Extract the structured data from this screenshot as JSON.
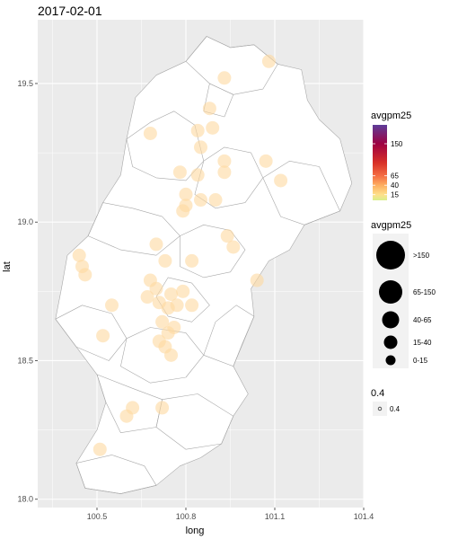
{
  "chart_data": {
    "type": "scatter",
    "title": "2017-02-01",
    "xlabel": "long",
    "ylabel": "lat",
    "xlim": [
      100.3,
      101.4
    ],
    "ylim": [
      17.97,
      19.73
    ],
    "x_ticks": [
      {
        "value": 100.5,
        "label": "100.5"
      },
      {
        "value": 100.8,
        "label": "100.8"
      },
      {
        "value": 101.1,
        "label": "101.1"
      },
      {
        "value": 101.4,
        "label": "101.4"
      }
    ],
    "y_ticks": [
      {
        "value": 18.0,
        "label": "18.0"
      },
      {
        "value": 18.5,
        "label": "18.5"
      },
      {
        "value": 19.0,
        "label": "19.0"
      },
      {
        "value": 19.5,
        "label": "19.5"
      }
    ],
    "grid": true,
    "legend_position": "right",
    "colors": {
      "panel": "#ebebeb",
      "grid": "#ffffff",
      "region_fill": "#ffffff",
      "region_stroke": "#a8a8a8",
      "point": "#fdd9a0",
      "legend_key": "#000000"
    },
    "color_legend": {
      "title": "avgpm25",
      "range": [
        0,
        200
      ],
      "stops": [
        {
          "value": 0,
          "color": "#d9ef8b"
        },
        {
          "value": 15,
          "color": "#fee08b"
        },
        {
          "value": 40,
          "color": "#fdae61"
        },
        {
          "value": 65,
          "color": "#f46d43"
        },
        {
          "value": 100,
          "color": "#d73027"
        },
        {
          "value": 150,
          "color": "#9e0142"
        },
        {
          "value": 200,
          "color": "#5e3c99"
        }
      ],
      "ticks": [
        {
          "value": 15,
          "label": "15"
        },
        {
          "value": 40,
          "label": "40"
        },
        {
          "value": 65,
          "label": "65"
        },
        {
          "value": 150,
          "label": "150"
        }
      ]
    },
    "size_legend": {
      "title": "avgpm25",
      "items": [
        {
          "label": ">150",
          "level": 5
        },
        {
          "label": "65-150",
          "level": 4
        },
        {
          "label": "40-65",
          "level": 3
        },
        {
          "label": "15-40",
          "level": 2
        },
        {
          "label": "0-15",
          "level": 1
        }
      ]
    },
    "alpha_legend": {
      "title": "0.4",
      "items": [
        {
          "label": "0.4"
        }
      ]
    },
    "points": [
      {
        "x": 101.08,
        "y": 19.58
      },
      {
        "x": 100.93,
        "y": 19.52
      },
      {
        "x": 100.88,
        "y": 19.41
      },
      {
        "x": 100.89,
        "y": 19.34
      },
      {
        "x": 100.84,
        "y": 19.33
      },
      {
        "x": 100.68,
        "y": 19.32
      },
      {
        "x": 100.85,
        "y": 19.27
      },
      {
        "x": 101.07,
        "y": 19.22
      },
      {
        "x": 100.93,
        "y": 19.22
      },
      {
        "x": 100.93,
        "y": 19.18
      },
      {
        "x": 100.78,
        "y": 19.18
      },
      {
        "x": 100.84,
        "y": 19.17
      },
      {
        "x": 101.12,
        "y": 19.15
      },
      {
        "x": 100.8,
        "y": 19.1
      },
      {
        "x": 100.85,
        "y": 19.08
      },
      {
        "x": 100.8,
        "y": 19.06
      },
      {
        "x": 100.9,
        "y": 19.08
      },
      {
        "x": 100.79,
        "y": 19.04
      },
      {
        "x": 100.94,
        "y": 18.95
      },
      {
        "x": 100.96,
        "y": 18.91
      },
      {
        "x": 100.7,
        "y": 18.92
      },
      {
        "x": 100.44,
        "y": 18.88
      },
      {
        "x": 100.45,
        "y": 18.84
      },
      {
        "x": 100.73,
        "y": 18.86
      },
      {
        "x": 100.82,
        "y": 18.86
      },
      {
        "x": 100.46,
        "y": 18.81
      },
      {
        "x": 101.04,
        "y": 18.79
      },
      {
        "x": 100.68,
        "y": 18.79
      },
      {
        "x": 100.7,
        "y": 18.76
      },
      {
        "x": 100.75,
        "y": 18.74
      },
      {
        "x": 100.79,
        "y": 18.75
      },
      {
        "x": 100.67,
        "y": 18.73
      },
      {
        "x": 100.71,
        "y": 18.71
      },
      {
        "x": 100.74,
        "y": 18.69
      },
      {
        "x": 100.77,
        "y": 18.7
      },
      {
        "x": 100.82,
        "y": 18.7
      },
      {
        "x": 100.55,
        "y": 18.7
      },
      {
        "x": 100.72,
        "y": 18.64
      },
      {
        "x": 100.76,
        "y": 18.62
      },
      {
        "x": 100.74,
        "y": 18.6
      },
      {
        "x": 100.52,
        "y": 18.59
      },
      {
        "x": 100.71,
        "y": 18.57
      },
      {
        "x": 100.73,
        "y": 18.55
      },
      {
        "x": 100.75,
        "y": 18.52
      },
      {
        "x": 100.62,
        "y": 18.33
      },
      {
        "x": 100.72,
        "y": 18.33
      },
      {
        "x": 100.6,
        "y": 18.3
      },
      {
        "x": 100.51,
        "y": 18.18
      }
    ],
    "regions": [
      [
        [
          100.87,
          19.67
        ],
        [
          100.95,
          19.63
        ],
        [
          101.03,
          19.64
        ],
        [
          101.11,
          19.57
        ],
        [
          101.19,
          19.55
        ],
        [
          101.21,
          19.44
        ],
        [
          101.25,
          19.37
        ],
        [
          101.32,
          19.3
        ],
        [
          101.36,
          19.14
        ],
        [
          101.32,
          19.04
        ],
        [
          101.2,
          18.99
        ],
        [
          101.15,
          18.9
        ],
        [
          101.08,
          18.86
        ],
        [
          101.02,
          18.76
        ],
        [
          101.03,
          18.66
        ],
        [
          100.99,
          18.56
        ],
        [
          100.96,
          18.48
        ],
        [
          101.01,
          18.38
        ],
        [
          100.96,
          18.3
        ],
        [
          100.92,
          18.2
        ],
        [
          100.85,
          18.15
        ],
        [
          100.78,
          18.12
        ],
        [
          100.7,
          18.05
        ],
        [
          100.58,
          18.02
        ],
        [
          100.46,
          18.04
        ],
        [
          100.43,
          18.13
        ],
        [
          100.5,
          18.25
        ],
        [
          100.53,
          18.35
        ],
        [
          100.5,
          18.45
        ],
        [
          100.43,
          18.55
        ],
        [
          100.36,
          18.65
        ],
        [
          100.38,
          18.76
        ],
        [
          100.4,
          18.88
        ],
        [
          100.47,
          18.95
        ],
        [
          100.52,
          19.07
        ],
        [
          100.58,
          19.17
        ],
        [
          100.6,
          19.3
        ],
        [
          100.63,
          19.45
        ],
        [
          100.7,
          19.53
        ],
        [
          100.8,
          19.58
        ]
      ],
      [
        [
          100.87,
          19.67
        ],
        [
          100.95,
          19.63
        ],
        [
          101.03,
          19.64
        ],
        [
          101.11,
          19.57
        ],
        [
          101.06,
          19.48
        ],
        [
          100.96,
          19.46
        ],
        [
          100.88,
          19.5
        ],
        [
          100.8,
          19.58
        ]
      ],
      [
        [
          100.6,
          19.3
        ],
        [
          100.68,
          19.36
        ],
        [
          100.76,
          19.4
        ],
        [
          100.83,
          19.35
        ],
        [
          100.86,
          19.22
        ],
        [
          100.8,
          19.15
        ],
        [
          100.7,
          19.16
        ],
        [
          100.62,
          19.2
        ]
      ],
      [
        [
          100.86,
          19.22
        ],
        [
          100.93,
          19.27
        ],
        [
          101.02,
          19.25
        ],
        [
          101.06,
          19.16
        ],
        [
          101.0,
          19.07
        ],
        [
          100.9,
          19.05
        ],
        [
          100.83,
          19.1
        ]
      ],
      [
        [
          101.06,
          19.16
        ],
        [
          101.15,
          19.22
        ],
        [
          101.25,
          19.2
        ],
        [
          101.32,
          19.04
        ],
        [
          101.2,
          18.99
        ],
        [
          101.12,
          19.02
        ]
      ],
      [
        [
          100.52,
          19.07
        ],
        [
          100.62,
          19.05
        ],
        [
          100.72,
          19.02
        ],
        [
          100.78,
          18.95
        ],
        [
          100.7,
          18.88
        ],
        [
          100.58,
          18.9
        ],
        [
          100.47,
          18.95
        ]
      ],
      [
        [
          100.78,
          18.95
        ],
        [
          100.86,
          18.99
        ],
        [
          100.95,
          18.97
        ],
        [
          101.0,
          18.9
        ],
        [
          100.95,
          18.82
        ],
        [
          100.86,
          18.8
        ],
        [
          100.78,
          18.84
        ]
      ],
      [
        [
          100.36,
          18.65
        ],
        [
          100.45,
          18.7
        ],
        [
          100.55,
          18.67
        ],
        [
          100.6,
          18.58
        ],
        [
          100.54,
          18.5
        ],
        [
          100.43,
          18.55
        ]
      ],
      [
        [
          100.6,
          18.58
        ],
        [
          100.68,
          18.62
        ],
        [
          100.8,
          18.6
        ],
        [
          100.86,
          18.52
        ],
        [
          100.8,
          18.44
        ],
        [
          100.68,
          18.42
        ],
        [
          100.58,
          18.48
        ]
      ],
      [
        [
          100.86,
          18.52
        ],
        [
          100.96,
          18.48
        ],
        [
          101.03,
          18.66
        ],
        [
          100.97,
          18.7
        ],
        [
          100.9,
          18.64
        ]
      ],
      [
        [
          100.5,
          18.45
        ],
        [
          100.62,
          18.4
        ],
        [
          100.72,
          18.36
        ],
        [
          100.7,
          18.26
        ],
        [
          100.58,
          18.24
        ],
        [
          100.53,
          18.35
        ]
      ],
      [
        [
          100.72,
          18.36
        ],
        [
          100.84,
          18.38
        ],
        [
          100.96,
          18.3
        ],
        [
          100.92,
          18.2
        ],
        [
          100.8,
          18.18
        ],
        [
          100.7,
          18.26
        ]
      ],
      [
        [
          100.43,
          18.13
        ],
        [
          100.55,
          18.16
        ],
        [
          100.66,
          18.12
        ],
        [
          100.7,
          18.05
        ],
        [
          100.58,
          18.02
        ],
        [
          100.46,
          18.04
        ]
      ],
      [
        [
          100.74,
          18.8
        ],
        [
          100.82,
          18.78
        ],
        [
          100.88,
          18.7
        ],
        [
          100.82,
          18.64
        ],
        [
          100.74,
          18.66
        ],
        [
          100.7,
          18.73
        ]
      ],
      [
        [
          100.88,
          19.5
        ],
        [
          100.96,
          19.46
        ],
        [
          100.93,
          19.38
        ],
        [
          100.86,
          19.4
        ]
      ]
    ]
  }
}
